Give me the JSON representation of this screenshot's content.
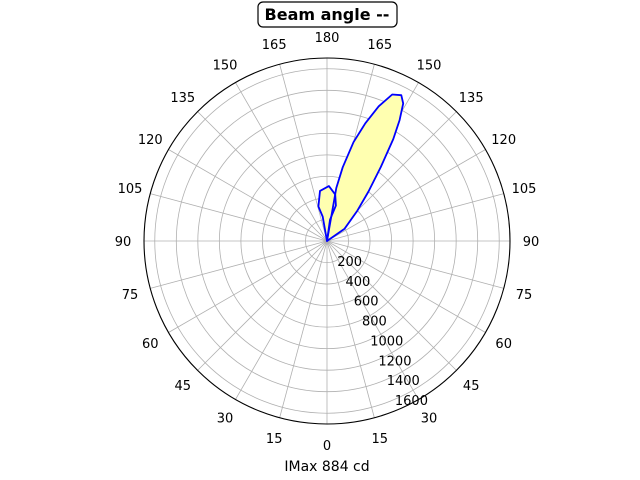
{
  "chart_data": {
    "type": "polar",
    "title": "Beam angle --",
    "xlabel": "IMax 884 cd",
    "angle_ticks": [
      {
        "angle": 0,
        "label": "180"
      },
      {
        "angle": 15,
        "label": "165"
      },
      {
        "angle": 30,
        "label": "150"
      },
      {
        "angle": 45,
        "label": "135"
      },
      {
        "angle": 60,
        "label": "120"
      },
      {
        "angle": 75,
        "label": "105"
      },
      {
        "angle": 90,
        "label": "90"
      },
      {
        "angle": 105,
        "label": "75"
      },
      {
        "angle": 120,
        "label": "60"
      },
      {
        "angle": 135,
        "label": "45"
      },
      {
        "angle": 150,
        "label": "30"
      },
      {
        "angle": 165,
        "label": "15"
      },
      {
        "angle": 180,
        "label": "0"
      },
      {
        "angle": 195,
        "label": "15"
      },
      {
        "angle": 210,
        "label": "30"
      },
      {
        "angle": 225,
        "label": "45"
      },
      {
        "angle": 240,
        "label": "60"
      },
      {
        "angle": 255,
        "label": "75"
      },
      {
        "angle": 270,
        "label": "90"
      },
      {
        "angle": 285,
        "label": "105"
      },
      {
        "angle": 300,
        "label": "120"
      },
      {
        "angle": 315,
        "label": "135"
      },
      {
        "angle": 330,
        "label": "150"
      },
      {
        "angle": 345,
        "label": "165"
      }
    ],
    "radial_ticks": [
      200,
      400,
      600,
      800,
      1000,
      1200,
      1400,
      1600
    ],
    "rmax": 1700,
    "grid": true,
    "series": [
      {
        "color": "#0000ff",
        "fill": "#ffffb0",
        "points": [
          [
            0,
            0
          ],
          [
            10,
            500
          ],
          [
            12,
            700
          ],
          [
            15,
            950
          ],
          [
            18,
            1150
          ],
          [
            21,
            1340
          ],
          [
            24,
            1490
          ],
          [
            27,
            1520
          ],
          [
            29,
            1460
          ],
          [
            31,
            1310
          ],
          [
            33,
            1130
          ],
          [
            36,
            850
          ],
          [
            40,
            600
          ],
          [
            45,
            400
          ],
          [
            55,
            200
          ],
          [
            90,
            0
          ]
        ]
      },
      {
        "color": "#0000ff",
        "fill": "#ffffb0",
        "points": [
          [
            0,
            0
          ],
          [
            -10,
            230
          ],
          [
            -14,
            330
          ],
          [
            -8,
            470
          ],
          [
            2,
            510
          ],
          [
            10,
            440
          ],
          [
            14,
            340
          ],
          [
            8,
            200
          ],
          [
            0,
            0
          ]
        ]
      }
    ]
  }
}
